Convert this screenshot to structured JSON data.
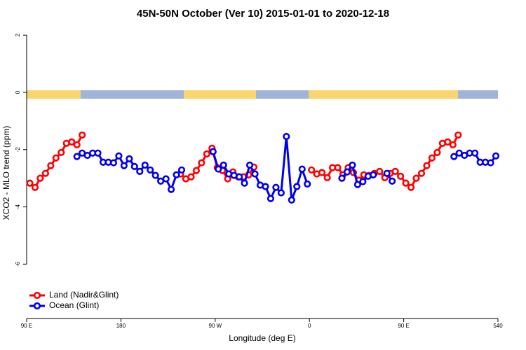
{
  "chart_data": {
    "type": "line",
    "title": "45N-50N October (Ver 10)   2015-01-01 to 2020-12-18",
    "x_label": "Longitude (deg E)",
    "y_label": "XCO2 - MLO trend (ppm)",
    "xlim": [
      90,
      540
    ],
    "ylim": [
      -7.9,
      2.25
    ],
    "xticks": [
      {
        "value": 90,
        "label": "90 E"
      },
      180,
      {
        "value": 270,
        "label": "90 W"
      },
      {
        "value": 360,
        "label": "0"
      },
      {
        "value": 450,
        "label": "90 E"
      },
      540
    ],
    "yticks": [
      2,
      0,
      -2,
      -4,
      -6
    ],
    "legend": "bottom-left",
    "series": [
      {
        "name": "Land (Nadir&Glint)",
        "color": "#ff0000",
        "x": [
          93,
          98,
          103,
          108,
          113,
          118,
          123,
          128,
          133,
          138,
          143,
          190,
          237,
          242,
          247,
          252,
          257,
          262,
          267,
          272,
          277,
          282,
          287,
          292,
          297,
          302,
          307,
          335,
          362,
          367,
          372,
          377,
          382,
          387,
          392,
          397,
          402,
          407,
          412,
          417,
          422,
          427,
          432,
          437,
          442,
          447,
          452,
          457,
          462,
          467,
          472,
          477,
          482,
          487,
          492,
          497,
          502
        ],
        "values": [
          -3.17,
          -3.32,
          -3.0,
          -2.83,
          -2.56,
          -2.29,
          -2.1,
          -1.78,
          -1.73,
          -1.83,
          -1.49,
          null,
          -2.85,
          -3.02,
          -2.95,
          -2.73,
          -2.46,
          -2.15,
          -1.95,
          -2.63,
          -2.73,
          -3.02,
          -2.78,
          -2.95,
          -2.95,
          -2.88,
          -2.61,
          null,
          -2.71,
          -2.85,
          -2.8,
          -2.98,
          -2.63,
          -2.63,
          -2.88,
          -2.63,
          -2.8,
          -3.07,
          -2.88,
          -2.9,
          -2.83,
          -2.76,
          -2.98,
          -2.83,
          -2.76,
          -2.93,
          -3.17,
          -3.32,
          -3.0,
          -2.83,
          -2.56,
          -2.29,
          -2.1,
          -1.78,
          -1.73,
          -1.83,
          -1.49
        ]
      },
      {
        "name": "Ocean (Glint)",
        "color": "#0000ee",
        "x": [
          138,
          143,
          148,
          153,
          158,
          163,
          168,
          173,
          178,
          183,
          188,
          193,
          198,
          203,
          208,
          213,
          218,
          223,
          228,
          233,
          238,
          253,
          268,
          273,
          278,
          283,
          288,
          293,
          298,
          303,
          308,
          313,
          318,
          323,
          328,
          333,
          338,
          343,
          348,
          353,
          358,
          375,
          391,
          396,
          401,
          406,
          411,
          416,
          421,
          428,
          434,
          439,
          470,
          498,
          503,
          508,
          513,
          518,
          523,
          528,
          533,
          538
        ],
        "values": [
          -2.24,
          -2.12,
          -2.2,
          -2.12,
          -2.12,
          -2.44,
          -2.44,
          -2.46,
          -2.22,
          -2.56,
          -2.32,
          -2.59,
          -2.76,
          -2.54,
          -2.71,
          -2.9,
          -3.1,
          -3.02,
          -3.39,
          -2.88,
          -2.71,
          null,
          -2.07,
          -2.68,
          -2.54,
          -2.85,
          -2.9,
          -2.95,
          -3.17,
          -2.54,
          -2.85,
          -3.24,
          -3.29,
          -3.71,
          -3.32,
          -3.51,
          -1.54,
          -3.76,
          -3.29,
          -2.68,
          -3.2,
          null,
          -3.0,
          -2.78,
          -2.54,
          -3.22,
          -3.12,
          -2.93,
          -2.88,
          null,
          -2.83,
          -3.1,
          null,
          -2.24,
          -2.12,
          -2.2,
          -2.12,
          -2.12,
          -2.44,
          -2.44,
          -2.46,
          -2.22
        ]
      }
    ]
  }
}
